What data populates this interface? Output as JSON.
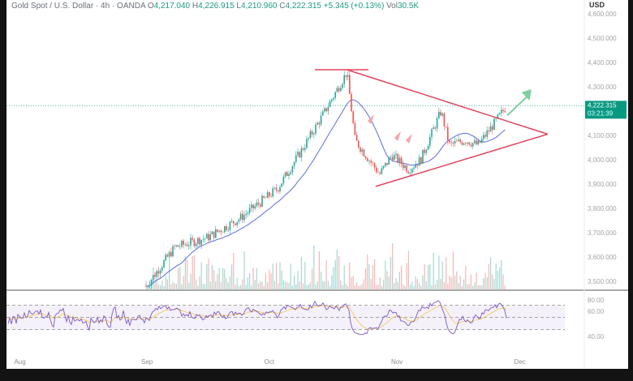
{
  "header": {
    "symbol": "Gold Spot / U.S. Dollar · 4h · OANDA",
    "open_label": "O",
    "open": "4,217.040",
    "high_label": "H",
    "high": "4,226.915",
    "low_label": "L",
    "low": "4,210.960",
    "close_label": "C",
    "close": "4,222.315",
    "change": "+5.345 (+0.13%)",
    "volume_label": "Vol",
    "volume": "30.5K"
  },
  "currency": "USD",
  "last_price": {
    "value": "4,222.315",
    "countdown": "03:21:39",
    "color": "#089981"
  },
  "colors": {
    "up": "#26a69a",
    "down": "#ef5350",
    "ma": "#5b6ee1",
    "rsi": "#7e57c2",
    "rsi_ma": "#f4c542",
    "trendline": "#e0455e",
    "target_arrow": "#7fcf9f",
    "marker": "#f7a1a8"
  },
  "chart_data": [
    {
      "type": "candlestick",
      "xlabel": "",
      "ylabel": "",
      "ylim": [
        3450,
        4650
      ],
      "y_ticks": [
        "4,600.000",
        "4,500.000",
        "4,400.000",
        "4,300.000",
        "4,100.000",
        "4,000.000",
        "3,900.000",
        "3,800.000",
        "3,700.000",
        "3,600.000",
        "3,500.000"
      ],
      "y_tick_values": [
        4600,
        4500,
        4400,
        4300,
        4100,
        4000,
        3900,
        3800,
        3700,
        3600,
        3500
      ],
      "x_ticks": [
        "Aug",
        "Sep",
        "Oct",
        "Nov",
        "Dec"
      ],
      "close_path": [
        {
          "date": "2025-09-01",
          "close": 3480
        },
        {
          "date": "2025-09-08",
          "close": 3640
        },
        {
          "date": "2025-09-16",
          "close": 3680
        },
        {
          "date": "2025-09-24",
          "close": 3760
        },
        {
          "date": "2025-10-03",
          "close": 3880
        },
        {
          "date": "2025-10-09",
          "close": 4040
        },
        {
          "date": "2025-10-14",
          "close": 4180
        },
        {
          "date": "2025-10-20",
          "close": 4360
        },
        {
          "date": "2025-10-22",
          "close": 4080
        },
        {
          "date": "2025-10-28",
          "close": 3940
        },
        {
          "date": "2025-10-31",
          "close": 4020
        },
        {
          "date": "2025-11-04",
          "close": 3960
        },
        {
          "date": "2025-11-07",
          "close": 4000
        },
        {
          "date": "2025-11-12",
          "close": 4200
        },
        {
          "date": "2025-11-14",
          "close": 4060
        },
        {
          "date": "2025-11-18",
          "close": 4080
        },
        {
          "date": "2025-11-21",
          "close": 4060
        },
        {
          "date": "2025-11-25",
          "close": 4150
        },
        {
          "date": "2025-11-28",
          "close": 4222
        }
      ],
      "annotations": {
        "resistance": 4370,
        "triangle_apex": {
          "date": "2025-12-08",
          "price": 4105
        },
        "triangle_upper_start": {
          "date": "2025-10-20",
          "price": 4370
        },
        "triangle_lower_start": {
          "date": "2025-10-27",
          "price": 3890
        },
        "breakout_target": {
          "date": "2025-12-04",
          "price": 4290
        }
      }
    },
    {
      "type": "line",
      "name": "RSI",
      "ylim": [
        20,
        90
      ],
      "y_ticks": [
        "80.00",
        "60.00",
        "40.00"
      ],
      "y_tick_values": [
        80,
        60,
        40
      ],
      "band": [
        30,
        70
      ]
    }
  ]
}
